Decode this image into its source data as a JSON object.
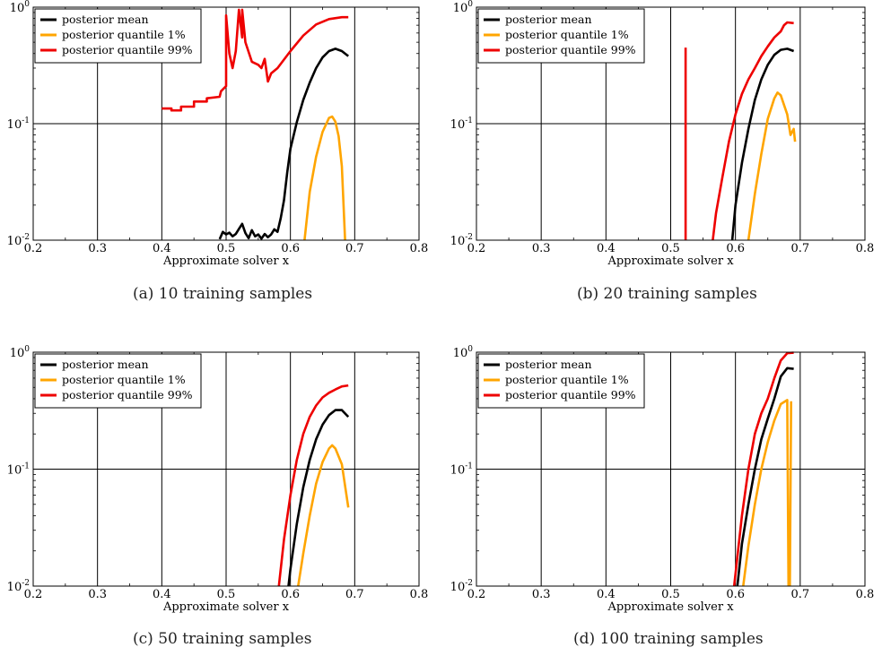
{
  "legend_labels": [
    "posterior mean",
    "posterior quantile 1%",
    "posterior quantile 99%"
  ],
  "colors": {
    "mean": "#000000",
    "q1": "#ffa500",
    "q99": "#ee0000"
  },
  "chart_data": [
    {
      "type": "line",
      "caption": "(a)  10 training samples",
      "xlabel": "Approximate solver x",
      "ylabel": "",
      "xlim": [
        0.2,
        0.8
      ],
      "ylim": [
        0.01,
        1
      ],
      "yscale": "log",
      "grid": true,
      "legend": "top-left",
      "xticks": [
        "0.2",
        "0.3",
        "0.4",
        "0.5",
        "0.6",
        "0.7",
        "0.8"
      ],
      "yticks": [
        {
          "base": "10",
          "exp": "-2"
        },
        {
          "base": "10",
          "exp": "-1"
        },
        {
          "base": "10",
          "exp": "0"
        }
      ],
      "series": [
        {
          "name": "posterior mean",
          "color": "#000000",
          "points": [
            [
              0.49,
              0.0102
            ],
            [
              0.495,
              0.0118
            ],
            [
              0.5,
              0.0112
            ],
            [
              0.505,
              0.0116
            ],
            [
              0.51,
              0.0108
            ],
            [
              0.515,
              0.0113
            ],
            [
              0.52,
              0.0125
            ],
            [
              0.525,
              0.0138
            ],
            [
              0.53,
              0.0115
            ],
            [
              0.535,
              0.0104
            ],
            [
              0.54,
              0.0122
            ],
            [
              0.545,
              0.0108
            ],
            [
              0.55,
              0.0112
            ],
            [
              0.555,
              0.0103
            ],
            [
              0.56,
              0.0113
            ],
            [
              0.565,
              0.0106
            ],
            [
              0.57,
              0.0112
            ],
            [
              0.575,
              0.0124
            ],
            [
              0.58,
              0.0118
            ],
            [
              0.585,
              0.0155
            ],
            [
              0.59,
              0.022
            ],
            [
              0.595,
              0.038
            ],
            [
              0.6,
              0.061
            ],
            [
              0.61,
              0.103
            ],
            [
              0.62,
              0.16
            ],
            [
              0.63,
              0.225
            ],
            [
              0.64,
              0.3
            ],
            [
              0.65,
              0.37
            ],
            [
              0.66,
              0.42
            ],
            [
              0.67,
              0.44
            ],
            [
              0.68,
              0.42
            ],
            [
              0.69,
              0.38
            ]
          ]
        },
        {
          "name": "posterior quantile 1%",
          "color": "#ffa500",
          "points": [
            [
              0.622,
              0.01
            ],
            [
              0.63,
              0.026
            ],
            [
              0.64,
              0.052
            ],
            [
              0.65,
              0.085
            ],
            [
              0.66,
              0.112
            ],
            [
              0.665,
              0.115
            ],
            [
              0.67,
              0.104
            ],
            [
              0.675,
              0.078
            ],
            [
              0.68,
              0.043
            ],
            [
              0.685,
              0.01
            ]
          ]
        },
        {
          "name": "posterior quantile 99%",
          "color": "#ee0000",
          "points": [
            [
              0.4,
              0.135
            ],
            [
              0.415,
              0.135
            ],
            [
              0.415,
              0.13
            ],
            [
              0.43,
              0.13
            ],
            [
              0.43,
              0.14
            ],
            [
              0.45,
              0.14
            ],
            [
              0.45,
              0.155
            ],
            [
              0.47,
              0.155
            ],
            [
              0.47,
              0.165
            ],
            [
              0.49,
              0.17
            ],
            [
              0.492,
              0.19
            ],
            [
              0.5,
              0.21
            ],
            [
              0.5,
              0.85
            ],
            [
              0.505,
              0.4
            ],
            [
              0.51,
              0.3
            ],
            [
              0.515,
              0.42
            ],
            [
              0.52,
              0.95
            ],
            [
              0.525,
              0.55
            ],
            [
              0.525,
              0.95
            ],
            [
              0.53,
              0.5
            ],
            [
              0.54,
              0.34
            ],
            [
              0.55,
              0.32
            ],
            [
              0.555,
              0.3
            ],
            [
              0.56,
              0.36
            ],
            [
              0.565,
              0.23
            ],
            [
              0.57,
              0.27
            ],
            [
              0.58,
              0.3
            ],
            [
              0.6,
              0.42
            ],
            [
              0.62,
              0.57
            ],
            [
              0.64,
              0.71
            ],
            [
              0.66,
              0.79
            ],
            [
              0.68,
              0.82
            ],
            [
              0.69,
              0.82
            ]
          ]
        }
      ]
    },
    {
      "type": "line",
      "caption": "(b)  20 training samples",
      "xlabel": "Approximate solver x",
      "ylabel": "",
      "xlim": [
        0.2,
        0.8
      ],
      "ylim": [
        0.01,
        1
      ],
      "yscale": "log",
      "grid": true,
      "legend": "top-left",
      "xticks": [
        "0.2",
        "0.3",
        "0.4",
        "0.5",
        "0.6",
        "0.7",
        "0.8"
      ],
      "yticks": [
        {
          "base": "10",
          "exp": "-2"
        },
        {
          "base": "10",
          "exp": "-1"
        },
        {
          "base": "10",
          "exp": "0"
        }
      ],
      "series": [
        {
          "name": "posterior mean",
          "color": "#000000",
          "points": [
            [
              0.595,
              0.01
            ],
            [
              0.6,
              0.02
            ],
            [
              0.61,
              0.046
            ],
            [
              0.62,
              0.09
            ],
            [
              0.63,
              0.16
            ],
            [
              0.64,
              0.24
            ],
            [
              0.65,
              0.32
            ],
            [
              0.66,
              0.39
            ],
            [
              0.67,
              0.43
            ],
            [
              0.68,
              0.44
            ],
            [
              0.69,
              0.42
            ]
          ]
        },
        {
          "name": "posterior quantile 1%",
          "color": "#ffa500",
          "points": [
            [
              0.62,
              0.01
            ],
            [
              0.63,
              0.025
            ],
            [
              0.64,
              0.055
            ],
            [
              0.65,
              0.11
            ],
            [
              0.66,
              0.165
            ],
            [
              0.665,
              0.185
            ],
            [
              0.67,
              0.175
            ],
            [
              0.68,
              0.12
            ],
            [
              0.685,
              0.08
            ],
            [
              0.69,
              0.09
            ],
            [
              0.692,
              0.07
            ]
          ]
        },
        {
          "name": "posterior quantile 99%",
          "color": "#ee0000",
          "points": [
            [
              0.565,
              0.01
            ],
            [
              0.57,
              0.017
            ],
            [
              0.58,
              0.035
            ],
            [
              0.59,
              0.07
            ],
            [
              0.6,
              0.12
            ],
            [
              0.61,
              0.18
            ],
            [
              0.62,
              0.24
            ],
            [
              0.63,
              0.3
            ],
            [
              0.64,
              0.38
            ],
            [
              0.65,
              0.46
            ],
            [
              0.66,
              0.55
            ],
            [
              0.67,
              0.62
            ],
            [
              0.675,
              0.7
            ],
            [
              0.68,
              0.74
            ],
            [
              0.69,
              0.73
            ]
          ]
        },
        {
          "name": "posterior quantile 99%",
          "color": "#ee0000",
          "points": [
            [
              0.523,
              0.01
            ],
            [
              0.523,
              0.45
            ]
          ]
        }
      ]
    },
    {
      "type": "line",
      "caption": "(c)  50 training samples",
      "xlabel": "Approximate solver x",
      "ylabel": "",
      "xlim": [
        0.2,
        0.8
      ],
      "ylim": [
        0.01,
        1
      ],
      "yscale": "log",
      "grid": true,
      "legend": "top-left",
      "xticks": [
        "0.2",
        "0.3",
        "0.4",
        "0.5",
        "0.6",
        "0.7",
        "0.8"
      ],
      "yticks": [
        {
          "base": "10",
          "exp": "-2"
        },
        {
          "base": "10",
          "exp": "-1"
        },
        {
          "base": "10",
          "exp": "0"
        }
      ],
      "series": [
        {
          "name": "posterior mean",
          "color": "#000000",
          "points": [
            [
              0.597,
              0.01
            ],
            [
              0.6,
              0.014
            ],
            [
              0.61,
              0.034
            ],
            [
              0.62,
              0.07
            ],
            [
              0.63,
              0.12
            ],
            [
              0.64,
              0.18
            ],
            [
              0.65,
              0.24
            ],
            [
              0.66,
              0.29
            ],
            [
              0.67,
              0.32
            ],
            [
              0.68,
              0.32
            ],
            [
              0.69,
              0.28
            ]
          ]
        },
        {
          "name": "posterior quantile 1%",
          "color": "#ffa500",
          "points": [
            [
              0.612,
              0.01
            ],
            [
              0.62,
              0.019
            ],
            [
              0.63,
              0.04
            ],
            [
              0.64,
              0.075
            ],
            [
              0.65,
              0.115
            ],
            [
              0.66,
              0.15
            ],
            [
              0.665,
              0.16
            ],
            [
              0.67,
              0.15
            ],
            [
              0.68,
              0.11
            ],
            [
              0.69,
              0.047
            ]
          ]
        },
        {
          "name": "posterior quantile 99%",
          "color": "#ee0000",
          "points": [
            [
              0.582,
              0.01
            ],
            [
              0.59,
              0.025
            ],
            [
              0.6,
              0.06
            ],
            [
              0.61,
              0.12
            ],
            [
              0.62,
              0.2
            ],
            [
              0.63,
              0.28
            ],
            [
              0.64,
              0.35
            ],
            [
              0.65,
              0.41
            ],
            [
              0.66,
              0.45
            ],
            [
              0.67,
              0.48
            ],
            [
              0.68,
              0.51
            ],
            [
              0.69,
              0.52
            ]
          ]
        }
      ]
    },
    {
      "type": "line",
      "caption": "(d)  100 training samples",
      "xlabel": "Approximate solver x",
      "ylabel": "",
      "xlim": [
        0.2,
        0.8
      ],
      "ylim": [
        0.01,
        1
      ],
      "yscale": "log",
      "grid": true,
      "legend": "top-left",
      "xticks": [
        "0.2",
        "0.3",
        "0.4",
        "0.5",
        "0.6",
        "0.7",
        "0.8"
      ],
      "yticks": [
        {
          "base": "10",
          "exp": "-2"
        },
        {
          "base": "10",
          "exp": "-1"
        },
        {
          "base": "10",
          "exp": "0"
        }
      ],
      "series": [
        {
          "name": "posterior mean",
          "color": "#000000",
          "points": [
            [
              0.603,
              0.01
            ],
            [
              0.61,
              0.023
            ],
            [
              0.62,
              0.05
            ],
            [
              0.63,
              0.1
            ],
            [
              0.64,
              0.18
            ],
            [
              0.65,
              0.27
            ],
            [
              0.66,
              0.4
            ],
            [
              0.67,
              0.62
            ],
            [
              0.68,
              0.73
            ],
            [
              0.69,
              0.72
            ]
          ]
        },
        {
          "name": "posterior quantile 1%",
          "color": "#ffa500",
          "points": [
            [
              0.612,
              0.01
            ],
            [
              0.62,
              0.022
            ],
            [
              0.63,
              0.05
            ],
            [
              0.64,
              0.1
            ],
            [
              0.65,
              0.17
            ],
            [
              0.66,
              0.26
            ],
            [
              0.67,
              0.36
            ],
            [
              0.68,
              0.39
            ],
            [
              0.682,
              0.01
            ],
            [
              0.684,
              0.01
            ],
            [
              0.686,
              0.38
            ]
          ]
        },
        {
          "name": "posterior quantile 99%",
          "color": "#ee0000",
          "points": [
            [
              0.598,
              0.01
            ],
            [
              0.61,
              0.04
            ],
            [
              0.62,
              0.1
            ],
            [
              0.63,
              0.2
            ],
            [
              0.64,
              0.3
            ],
            [
              0.65,
              0.4
            ],
            [
              0.66,
              0.6
            ],
            [
              0.67,
              0.85
            ],
            [
              0.68,
              0.98
            ],
            [
              0.69,
              0.99
            ]
          ]
        }
      ]
    }
  ]
}
